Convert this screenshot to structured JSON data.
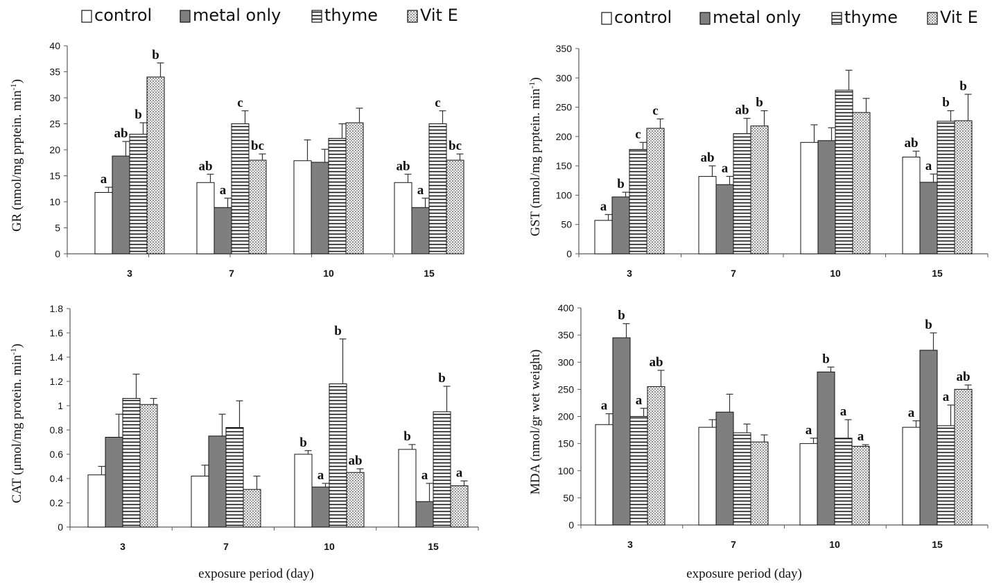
{
  "legend": {
    "items": [
      {
        "label": "control",
        "pattern": "white"
      },
      {
        "label": "metal only",
        "pattern": "gray"
      },
      {
        "label": "thyme",
        "pattern": "hstripe"
      },
      {
        "label": "Vit E",
        "pattern": "dots"
      }
    ]
  },
  "colors": {
    "control": "#ffffff",
    "metal": "#7f7f7f",
    "axis": "#595959",
    "ink": "#111111"
  },
  "chart_data": [
    {
      "type": "bar",
      "title": "",
      "xlabel": "",
      "ylabel": "GR (nmol/mg prptein. min-1)",
      "ylim": [
        0,
        40
      ],
      "yticks": [
        0,
        5,
        10,
        15,
        20,
        25,
        30,
        35,
        40
      ],
      "categories": [
        "3",
        "7",
        "10",
        "15"
      ],
      "series": [
        {
          "name": "control",
          "values": [
            11.8,
            13.7,
            17.9,
            13.7
          ],
          "errors": [
            1.0,
            1.6,
            4.0,
            1.6
          ],
          "letters": [
            "a",
            "ab",
            "",
            "ab"
          ]
        },
        {
          "name": "metal only",
          "values": [
            18.8,
            8.9,
            17.6,
            8.9
          ],
          "errors": [
            2.8,
            1.8,
            2.5,
            1.8
          ],
          "letters": [
            "ab",
            "a",
            "",
            "a"
          ]
        },
        {
          "name": "thyme",
          "values": [
            23.0,
            25.0,
            22.2,
            25.0
          ],
          "errors": [
            2.2,
            2.5,
            2.8,
            2.5
          ],
          "letters": [
            "b",
            "c",
            "",
            "c"
          ]
        },
        {
          "name": "Vit E",
          "values": [
            34.0,
            18.0,
            25.2,
            18.0
          ],
          "errors": [
            2.7,
            1.2,
            2.8,
            1.2
          ],
          "letters": [
            "b",
            "bc",
            "",
            "bc"
          ]
        }
      ]
    },
    {
      "type": "bar",
      "title": "",
      "xlabel": "",
      "ylabel": "GST (nmol/mg prptein. min-1)",
      "ylim": [
        0,
        350
      ],
      "yticks": [
        0,
        50,
        100,
        150,
        200,
        250,
        300,
        350
      ],
      "categories": [
        "3",
        "7",
        "10",
        "15"
      ],
      "series": [
        {
          "name": "control",
          "values": [
            57,
            132,
            190,
            165
          ],
          "errors": [
            10,
            18,
            30,
            10
          ],
          "letters": [
            "a",
            "ab",
            "",
            "ab"
          ]
        },
        {
          "name": "metal only",
          "values": [
            97,
            118,
            193,
            122
          ],
          "errors": [
            8,
            14,
            22,
            14
          ],
          "letters": [
            "b",
            "a",
            "",
            "a"
          ]
        },
        {
          "name": "thyme",
          "values": [
            178,
            205,
            279,
            226
          ],
          "errors": [
            12,
            26,
            34,
            18
          ],
          "letters": [
            "c",
            "ab",
            "",
            "b"
          ]
        },
        {
          "name": "Vit E",
          "values": [
            214,
            218,
            241,
            227
          ],
          "errors": [
            16,
            26,
            24,
            45
          ],
          "letters": [
            "c",
            "b",
            "",
            "b"
          ]
        }
      ]
    },
    {
      "type": "bar",
      "title": "",
      "xlabel": "exposure period (day)",
      "ylabel": "CAT (μmol/mg protein. min-1)",
      "ylim": [
        0,
        1.8
      ],
      "yticks": [
        0,
        0.2,
        0.4,
        0.6,
        0.8,
        1,
        1.2,
        1.4,
        1.6,
        1.8
      ],
      "categories": [
        "3",
        "7",
        "10",
        "15"
      ],
      "series": [
        {
          "name": "control",
          "values": [
            0.43,
            0.42,
            0.6,
            0.64
          ],
          "errors": [
            0.07,
            0.09,
            0.03,
            0.04
          ],
          "letters": [
            "",
            "",
            "b",
            "b"
          ]
        },
        {
          "name": "metal only",
          "values": [
            0.74,
            0.75,
            0.33,
            0.21
          ],
          "errors": [
            0.19,
            0.18,
            0.03,
            0.15
          ],
          "letters": [
            "",
            "",
            "a",
            "a"
          ]
        },
        {
          "name": "thyme",
          "values": [
            1.06,
            0.82,
            1.18,
            0.95
          ],
          "errors": [
            0.2,
            0.22,
            0.37,
            0.21
          ],
          "letters": [
            "",
            "",
            "b",
            "b"
          ]
        },
        {
          "name": "Vit E",
          "values": [
            1.01,
            0.31,
            0.45,
            0.34
          ],
          "errors": [
            0.05,
            0.11,
            0.03,
            0.04
          ],
          "letters": [
            "",
            "",
            "ab",
            "a"
          ]
        }
      ]
    },
    {
      "type": "bar",
      "title": "",
      "xlabel": "exposure period (day)",
      "ylabel": "MDA (nmol/gr wet weight)",
      "ylim": [
        0,
        400
      ],
      "yticks": [
        0,
        50,
        100,
        150,
        200,
        250,
        300,
        350,
        400
      ],
      "categories": [
        "3",
        "7",
        "10",
        "15"
      ],
      "series": [
        {
          "name": "control",
          "values": [
            185,
            180,
            150,
            180
          ],
          "errors": [
            20,
            14,
            10,
            12
          ],
          "letters": [
            "a",
            "",
            "a",
            "a"
          ]
        },
        {
          "name": "metal only",
          "values": [
            345,
            208,
            282,
            322
          ],
          "errors": [
            26,
            33,
            9,
            32
          ],
          "letters": [
            "b",
            "",
            "b",
            "b"
          ]
        },
        {
          "name": "thyme",
          "values": [
            200,
            170,
            160,
            183
          ],
          "errors": [
            15,
            16,
            34,
            38
          ],
          "letters": [
            "a",
            "",
            "a",
            "a"
          ]
        },
        {
          "name": "Vit E",
          "values": [
            255,
            153,
            145,
            250
          ],
          "errors": [
            30,
            13,
            3,
            8
          ],
          "letters": [
            "ab",
            "",
            "a",
            "ab"
          ]
        }
      ]
    }
  ]
}
